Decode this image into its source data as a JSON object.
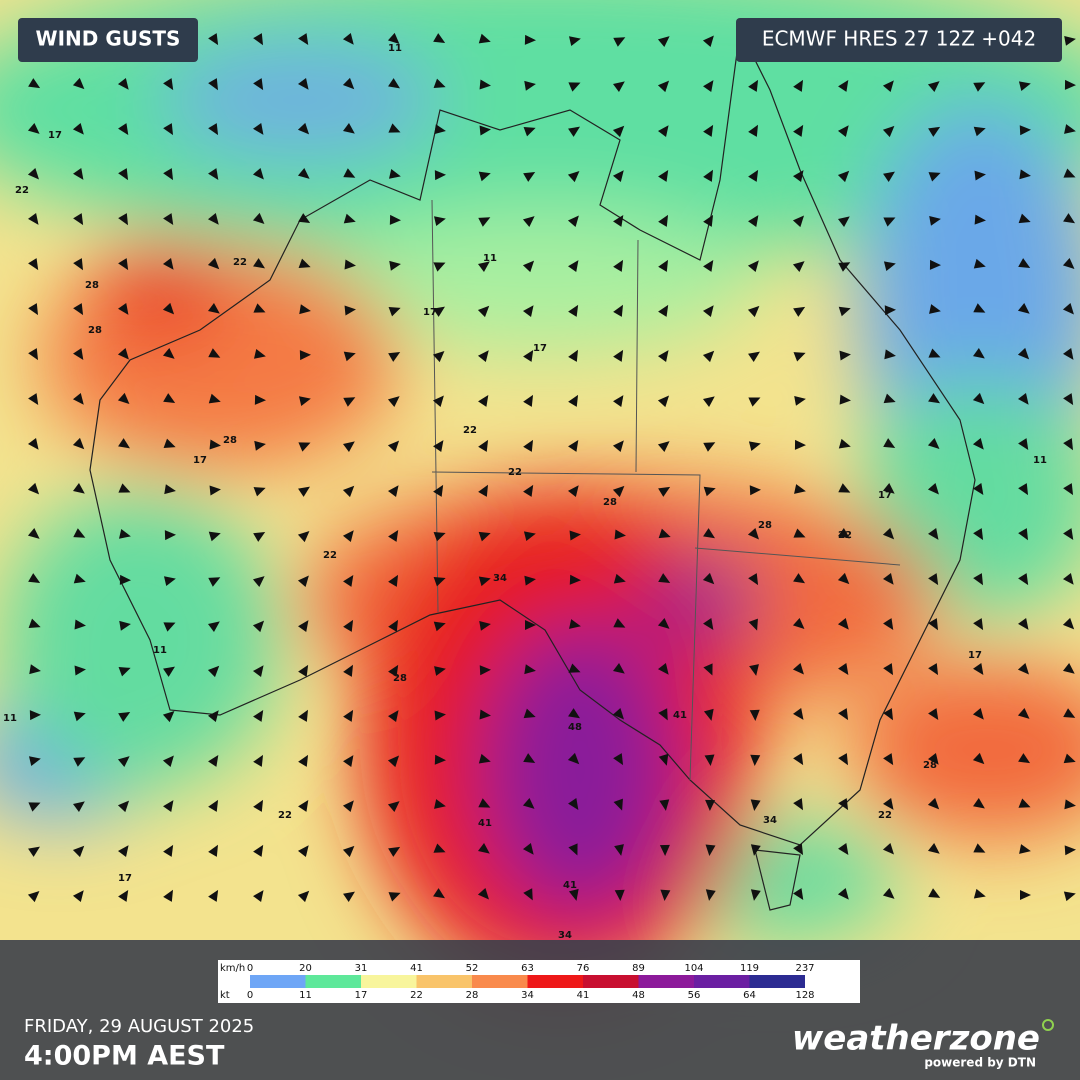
{
  "header": {
    "title": "WIND GUSTS",
    "model": "ECMWF HRES 27 12Z +042"
  },
  "legend": {
    "unit_top": "km/h",
    "unit_bottom": "kt",
    "kmh": [
      0,
      20,
      31,
      41,
      52,
      63,
      76,
      89,
      104,
      119,
      237
    ],
    "kt": [
      0,
      11,
      17,
      22,
      28,
      34,
      41,
      48,
      56,
      64,
      128
    ],
    "colors": [
      "#6ea6f6",
      "#5ee89a",
      "#f8f59c",
      "#f9c46a",
      "#f98a4c",
      "#ee1818",
      "#c80f30",
      "#8c1a9a",
      "#6b1fa2",
      "#2c2b92"
    ]
  },
  "footer": {
    "date": "FRIDAY, 29 AUGUST 2025",
    "time": "4:00PM AEST",
    "brand": "weatherzone",
    "tagline": "powered by DTN"
  },
  "contour_labels": [
    11,
    17,
    22,
    28,
    22,
    17,
    11,
    22,
    28,
    28,
    22,
    17,
    11,
    17,
    22,
    28,
    34,
    41,
    48,
    41,
    34,
    28,
    22,
    17,
    11,
    28,
    22,
    17,
    41,
    34,
    28,
    22,
    11,
    17
  ]
}
